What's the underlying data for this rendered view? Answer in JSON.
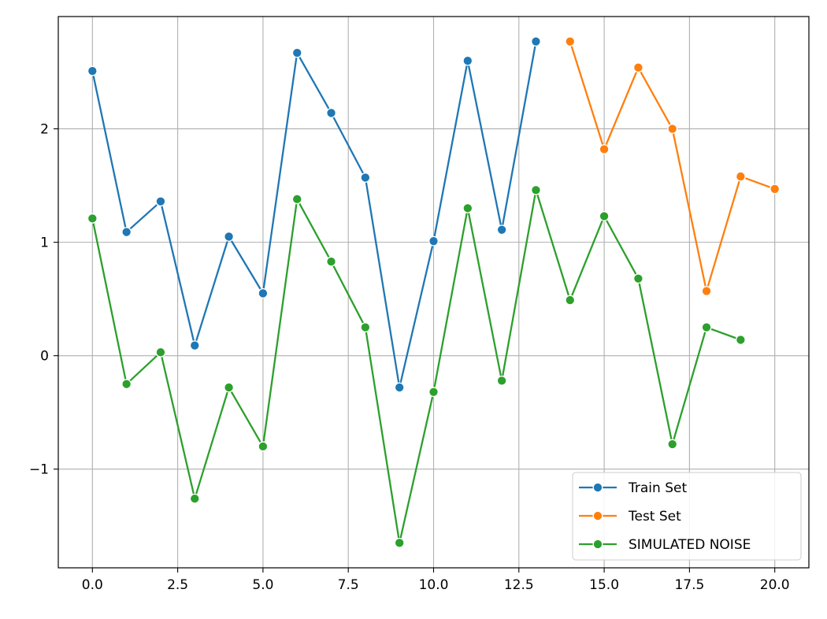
{
  "chart_data": {
    "type": "line",
    "title": "",
    "xlabel": "",
    "ylabel": "",
    "xlim": [
      -1.0,
      21.0
    ],
    "ylim": [
      -1.87,
      2.99
    ],
    "grid": true,
    "legend_position": "lower-right",
    "x_ticks": [
      0.0,
      2.5,
      5.0,
      7.5,
      10.0,
      12.5,
      15.0,
      17.5,
      20.0
    ],
    "x_tick_labels": [
      "0.0",
      "2.5",
      "5.0",
      "7.5",
      "10.0",
      "12.5",
      "15.0",
      "17.5",
      "20.0"
    ],
    "y_ticks": [
      -1,
      0,
      1,
      2
    ],
    "y_tick_labels": [
      "−1",
      "0",
      "1",
      "2"
    ],
    "series": [
      {
        "name": "Train Set",
        "color": "#1f77b4",
        "marker": "circle",
        "x": [
          0,
          1,
          2,
          3,
          4,
          5,
          6,
          7,
          8,
          9,
          10,
          11,
          12,
          13
        ],
        "y": [
          2.51,
          1.09,
          1.36,
          0.09,
          1.05,
          0.55,
          2.67,
          2.14,
          1.57,
          -0.28,
          1.01,
          2.6,
          1.11,
          2.77
        ]
      },
      {
        "name": "Test Set",
        "color": "#ff7f0e",
        "marker": "circle",
        "x": [
          14,
          15,
          16,
          17,
          18,
          19,
          20
        ],
        "y": [
          2.77,
          1.82,
          2.54,
          2.0,
          0.57,
          1.58,
          1.47
        ]
      },
      {
        "name": "SIMULATED NOISE",
        "color": "#2ca02c",
        "marker": "circle",
        "x": [
          0,
          1,
          2,
          3,
          4,
          5,
          6,
          7,
          8,
          9,
          10,
          11,
          12,
          13,
          14,
          15,
          16,
          17,
          18,
          19
        ],
        "y": [
          1.21,
          -0.25,
          0.03,
          -1.26,
          -0.28,
          -0.8,
          1.38,
          0.83,
          0.25,
          -1.65,
          -0.32,
          1.3,
          -0.22,
          1.46,
          0.49,
          1.23,
          0.68,
          -0.78,
          0.25,
          0.14
        ]
      }
    ]
  }
}
